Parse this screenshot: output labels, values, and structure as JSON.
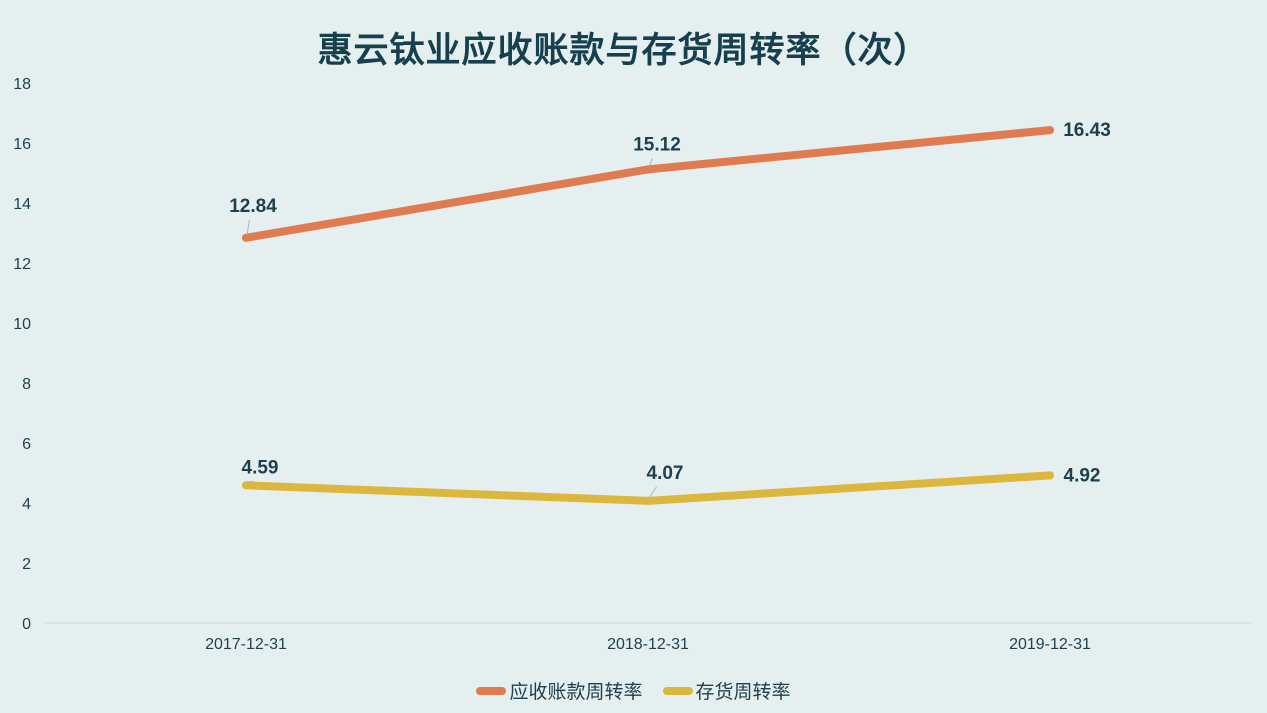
{
  "chart_data": {
    "type": "line",
    "title": "惠云钛业应收账款与存货周转率（次）",
    "categories": [
      "2017-12-31",
      "2018-12-31",
      "2019-12-31"
    ],
    "series": [
      {
        "name": "应收账款周转率",
        "values": [
          12.84,
          15.12,
          16.43
        ],
        "labels": [
          "12.84",
          "15.12",
          "16.43"
        ],
        "color": "#e07b4f"
      },
      {
        "name": "存货周转率",
        "values": [
          4.59,
          4.07,
          4.92
        ],
        "labels": [
          "4.59",
          "4.07",
          "4.92"
        ],
        "color": "#dbb83d"
      }
    ],
    "y_ticks": [
      "0",
      "2",
      "4",
      "6",
      "8",
      "10",
      "12",
      "14",
      "16",
      "18"
    ],
    "ylim": [
      0,
      18
    ],
    "grid": false,
    "legend_position": "bottom",
    "colors": {
      "background": "#e5efef",
      "text": "#1e3f4d",
      "axis": "#c9d9dc"
    }
  }
}
